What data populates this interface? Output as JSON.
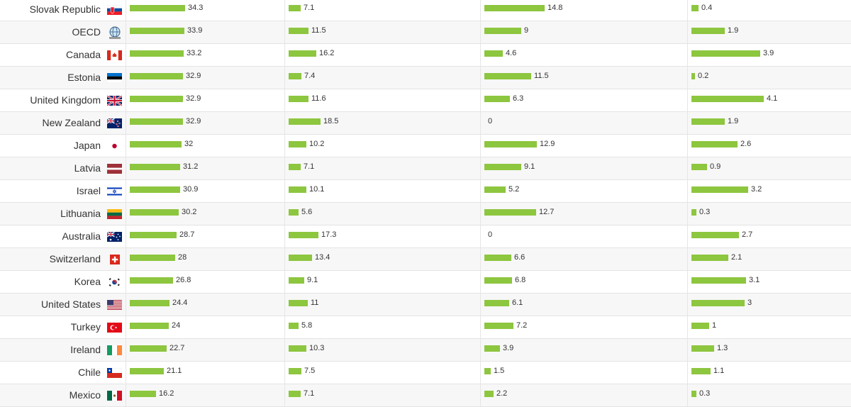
{
  "chart_data": {
    "type": "bar",
    "categories": [
      "Slovak Republic",
      "OECD",
      "Canada",
      "Estonia",
      "United Kingdom",
      "New Zealand",
      "Japan",
      "Latvia",
      "Israel",
      "Lithuania",
      "Australia",
      "Switzerland",
      "Korea",
      "United States",
      "Turkey",
      "Ireland",
      "Chile",
      "Mexico"
    ],
    "series": [
      {
        "values": [
          34.3,
          33.9,
          33.2,
          32.9,
          32.9,
          32.9,
          32,
          31.2,
          30.9,
          30.2,
          28.7,
          28,
          26.8,
          24.4,
          24,
          22.7,
          21.1,
          16.2
        ],
        "max": 35
      },
      {
        "values": [
          7.1,
          11.5,
          16.2,
          7.4,
          11.6,
          18.5,
          10.2,
          7.1,
          10.1,
          5.6,
          17.3,
          13.4,
          9.1,
          11,
          5.8,
          10.3,
          7.5,
          7.1
        ],
        "max": 28
      },
      {
        "values": [
          14.8,
          9,
          4.6,
          11.5,
          6.3,
          0,
          12.9,
          9.1,
          5.2,
          12.7,
          0,
          6.6,
          6.8,
          6.1,
          7.2,
          3.9,
          1.5,
          2.2
        ],
        "max": 16.5
      },
      {
        "values": [
          0.4,
          1.9,
          3.9,
          0.2,
          4.1,
          1.9,
          2.6,
          0.9,
          3.2,
          0.3,
          2.7,
          2.1,
          3.1,
          3,
          1,
          1.3,
          1.1,
          0.3
        ],
        "max": 4.3
      }
    ],
    "bar_color": "#8dc63f",
    "flags": [
      "slovakia",
      "oecd",
      "canada",
      "estonia",
      "uk",
      "newzealand",
      "japan",
      "latvia",
      "israel",
      "lithuania",
      "australia",
      "switzerland",
      "korea",
      "usa",
      "turkey",
      "ireland",
      "chile",
      "mexico"
    ]
  }
}
